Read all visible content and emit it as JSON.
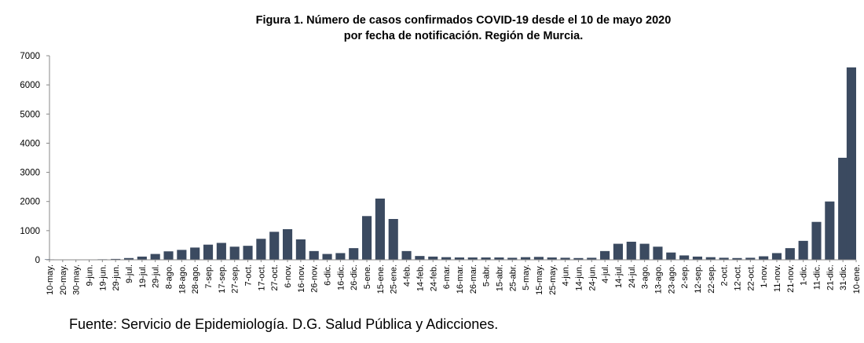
{
  "chart_data": {
    "type": "bar",
    "title": "Figura 1. Número de casos confirmados COVID-19 desde el 10 de mayo 2020",
    "subtitle": "por fecha de notificación. Región de Murcia.",
    "xlabel": "",
    "ylabel": "",
    "ylim": [
      0,
      7000
    ],
    "yticks": [
      0,
      1000,
      2000,
      3000,
      4000,
      5000,
      6000,
      7000
    ],
    "grid": false,
    "x_start": "10-may.",
    "x_step_days": 10,
    "categories": [
      "10-may.",
      "20-may.",
      "30-may.",
      "9-jun.",
      "19-jun.",
      "29-jun.",
      "9-jul.",
      "19-jul.",
      "29-jul.",
      "8-ago.",
      "18-ago.",
      "28-ago.",
      "7-sep.",
      "17-sep.",
      "27-sep.",
      "7-oct.",
      "17-oct.",
      "27-oct.",
      "6-nov.",
      "16-nov.",
      "26-nov.",
      "6-dic.",
      "16-dic.",
      "26-dic.",
      "5-ene.",
      "15-ene.",
      "25-ene.",
      "4-feb.",
      "14-feb.",
      "24-feb.",
      "6-mar.",
      "16-mar.",
      "26-mar.",
      "5-abr.",
      "15-abr.",
      "25-abr.",
      "5-may.",
      "15-may.",
      "25-may.",
      "4-jun.",
      "14-jun.",
      "24-jun.",
      "4-jul.",
      "14-jul.",
      "24-jul.",
      "3-ago.",
      "13-ago.",
      "23-ago.",
      "2-sep.",
      "12-sep.",
      "22-sep.",
      "2-oct.",
      "12-oct.",
      "22-oct.",
      "1-nov.",
      "11-nov.",
      "21-nov.",
      "1-dic.",
      "11-dic.",
      "21-dic.",
      "31-dic.",
      "10-ene."
    ],
    "values": [
      15,
      12,
      10,
      10,
      18,
      30,
      60,
      110,
      200,
      290,
      340,
      420,
      520,
      580,
      450,
      480,
      720,
      960,
      1050,
      700,
      300,
      200,
      230,
      400,
      1500,
      2100,
      1400,
      300,
      130,
      110,
      90,
      80,
      80,
      80,
      80,
      70,
      90,
      100,
      80,
      70,
      60,
      70,
      300,
      550,
      620,
      550,
      450,
      250,
      150,
      110,
      90,
      70,
      60,
      70,
      120,
      230,
      400,
      650,
      1300,
      2000,
      3500,
      6600
    ],
    "color": "#3b4a60"
  },
  "footer": {
    "source": "Fuente: Servicio de Epidemiología. D.G. Salud Pública y Adicciones."
  }
}
